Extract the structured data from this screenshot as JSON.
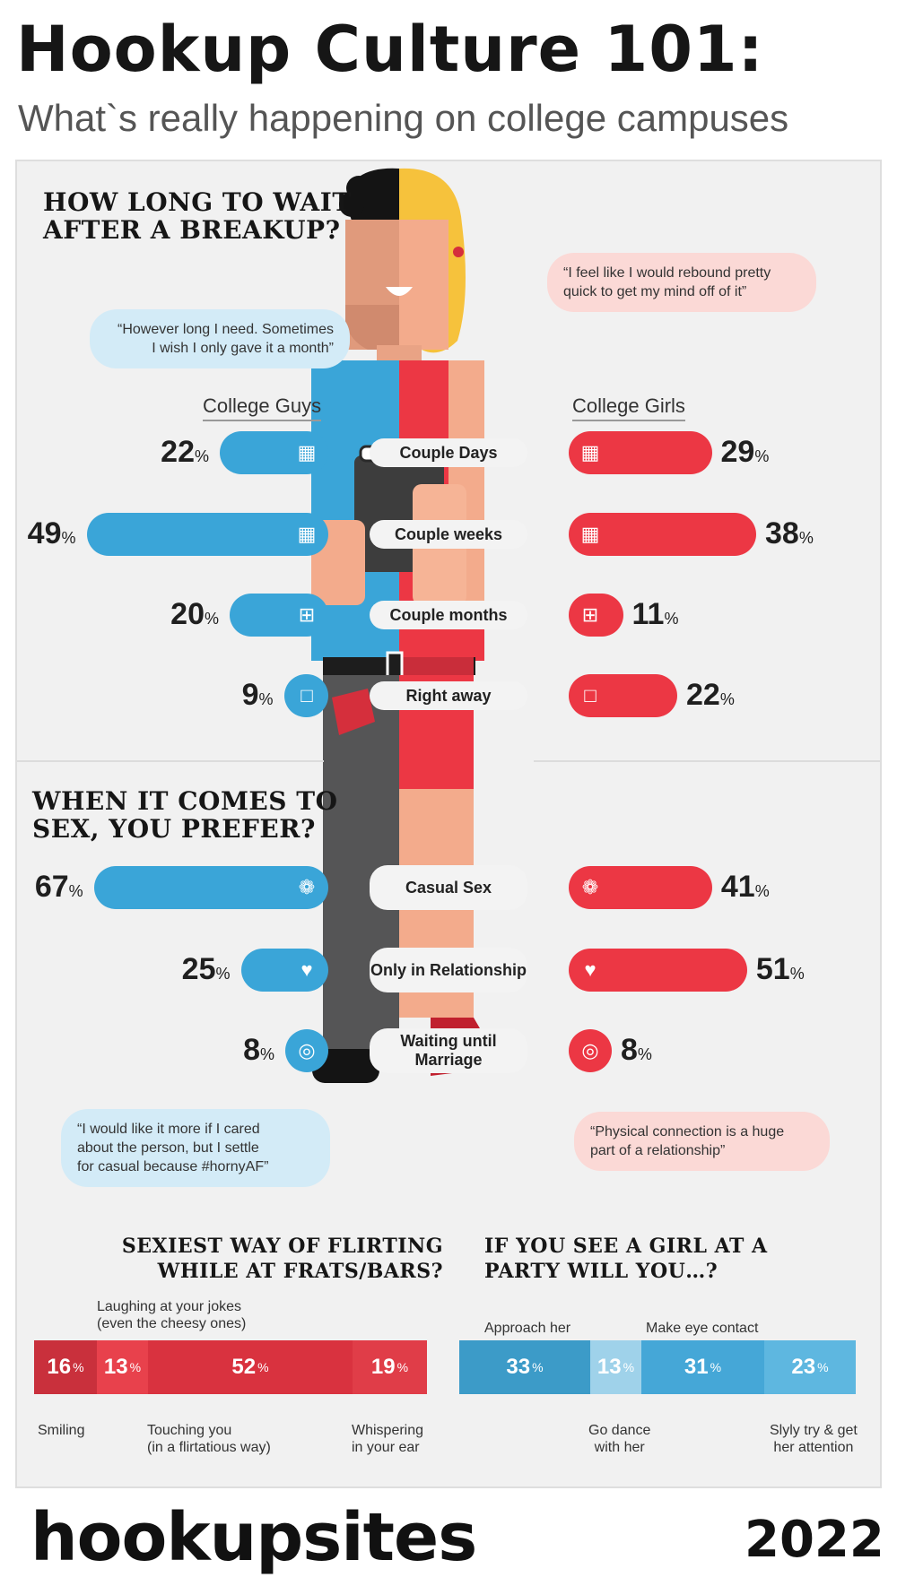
{
  "header": {
    "title": "Hookup Culture 101:",
    "subtitle": "What`s really happening on college campuses"
  },
  "colors": {
    "guys": "#3aa5d8",
    "girls": "#ec3744",
    "flirt_red": "#d9323f",
    "party_blue": "#45a7d7"
  },
  "section1": {
    "heading_line1": "HOW LONG TO WAIT",
    "heading_line2": "AFTER A BREAKUP?",
    "quote_guy_line1": "“However long I need. Sometimes",
    "quote_guy_line2": "I wish I only gave it a month”",
    "quote_girl_line1": "“I feel like I would rebound pretty",
    "quote_girl_line2": "quick to get my mind off of it”",
    "guys_label": "College Guys",
    "girls_label": "College Girls"
  },
  "section2": {
    "heading_line1": "WHEN IT COMES TO",
    "heading_line2": "SEX, YOU PREFER?",
    "quote_guy_line1": "“I would like it more if I cared",
    "quote_guy_line2": "about the person, but I settle",
    "quote_guy_line3": "for casual because #hornyAF”",
    "quote_girl_line1": "“Physical connection is a huge",
    "quote_girl_line2": "part of a relationship”"
  },
  "chart_data": [
    {
      "type": "bar",
      "title": "HOW LONG TO WAIT AFTER A BREAKUP?",
      "categories": [
        "Couple Days",
        "Couple weeks",
        "Couple months",
        "Right away"
      ],
      "series": [
        {
          "name": "College Guys",
          "values": [
            22,
            49,
            20,
            9
          ]
        },
        {
          "name": "College Girls",
          "values": [
            29,
            38,
            11,
            22
          ]
        }
      ],
      "unit": "%"
    },
    {
      "type": "bar",
      "title": "WHEN IT COMES TO SEX, YOU PREFER?",
      "categories": [
        "Casual Sex",
        "Only in Relationship",
        "Waiting until Marriage"
      ],
      "series": [
        {
          "name": "College Guys",
          "values": [
            67,
            25,
            8
          ]
        },
        {
          "name": "College Girls",
          "values": [
            41,
            51,
            8
          ]
        }
      ],
      "unit": "%"
    },
    {
      "type": "bar",
      "stacked": true,
      "title": "SEXIEST WAY OF FLIRTING WHILE AT FRATS/BARS?",
      "categories": [
        "Smiling",
        "Laughing at your jokes (even the cheesy ones)",
        "Touching you (in a flirtatious way)",
        "Whispering in your ear"
      ],
      "values": [
        16,
        13,
        52,
        19
      ],
      "unit": "%"
    },
    {
      "type": "bar",
      "stacked": true,
      "title": "IF YOU SEE A GIRL AT A PARTY WILL YOU...?",
      "categories": [
        "Approach her",
        "Go dance with her",
        "Make eye contact",
        "Slyly try & get her attention"
      ],
      "values": [
        33,
        13,
        31,
        23
      ],
      "unit": "%"
    }
  ],
  "flirting": {
    "heading_line1": "SEXIEST WAY OF FLIRTING",
    "heading_line2": "WHILE AT FRATS/BARS?",
    "labels": {
      "smiling": "Smiling",
      "laughing_line1": "Laughing at your jokes",
      "laughing_line2": "(even the cheesy ones)",
      "touching_line1": "Touching you",
      "touching_line2": "(in a flirtatious way)",
      "whispering_line1": "Whispering",
      "whispering_line2": "in your ear"
    }
  },
  "party": {
    "heading_line1": "IF YOU SEE A GIRL AT A",
    "heading_line2": "PARTY WILL YOU…?",
    "labels": {
      "approach": "Approach her",
      "dance_line1": "Go dance",
      "dance_line2": "with her",
      "eye": "Make eye contact",
      "slyly_line1": "Slyly try & get",
      "slyly_line2": "her attention"
    }
  },
  "footer": {
    "brand": "hookupsites",
    "year": "2022"
  }
}
